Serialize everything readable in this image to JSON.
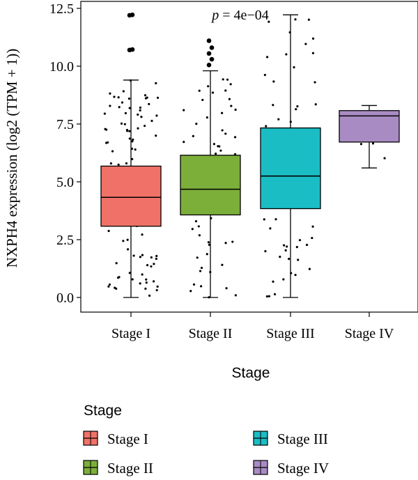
{
  "chart_data": {
    "type": "box",
    "xlabel": "Stage",
    "ylabel": "NXPH4 expression (log2 (TPM + 1))",
    "ylim": [
      0,
      12.5
    ],
    "yticks": [
      "0.0",
      "2.5",
      "5.0",
      "7.5",
      "10.0",
      "12.5"
    ],
    "categories": [
      "Stage I",
      "Stage II",
      "Stage III",
      "Stage IV"
    ],
    "annotation": {
      "p_symbol": "p",
      "p_value": " = 4e−04"
    },
    "legend": {
      "title": "Stage",
      "position": "bottom"
    },
    "grid": false,
    "series": [
      {
        "name": "Stage I",
        "color": "#F07167",
        "min": 0.0,
        "q1": 3.08,
        "median": 4.33,
        "q3": 5.68,
        "max": 9.4,
        "outliers": [
          10.7,
          10.72,
          12.2,
          12.22
        ]
      },
      {
        "name": "Stage II",
        "color": "#7CAE3A",
        "min": 0.0,
        "q1": 3.57,
        "median": 4.68,
        "q3": 6.15,
        "max": 9.8,
        "outliers": [
          10.05,
          10.3,
          10.55,
          10.8,
          11.1
        ]
      },
      {
        "name": "Stage III",
        "color": "#1BBDC5",
        "min": 0.0,
        "q1": 3.84,
        "median": 5.25,
        "q3": 7.33,
        "max": 12.22,
        "outliers": []
      },
      {
        "name": "Stage IV",
        "color": "#A98BC4",
        "min": 5.6,
        "q1": 6.72,
        "median": 7.85,
        "q3": 8.08,
        "max": 8.3,
        "outliers": []
      }
    ]
  }
}
